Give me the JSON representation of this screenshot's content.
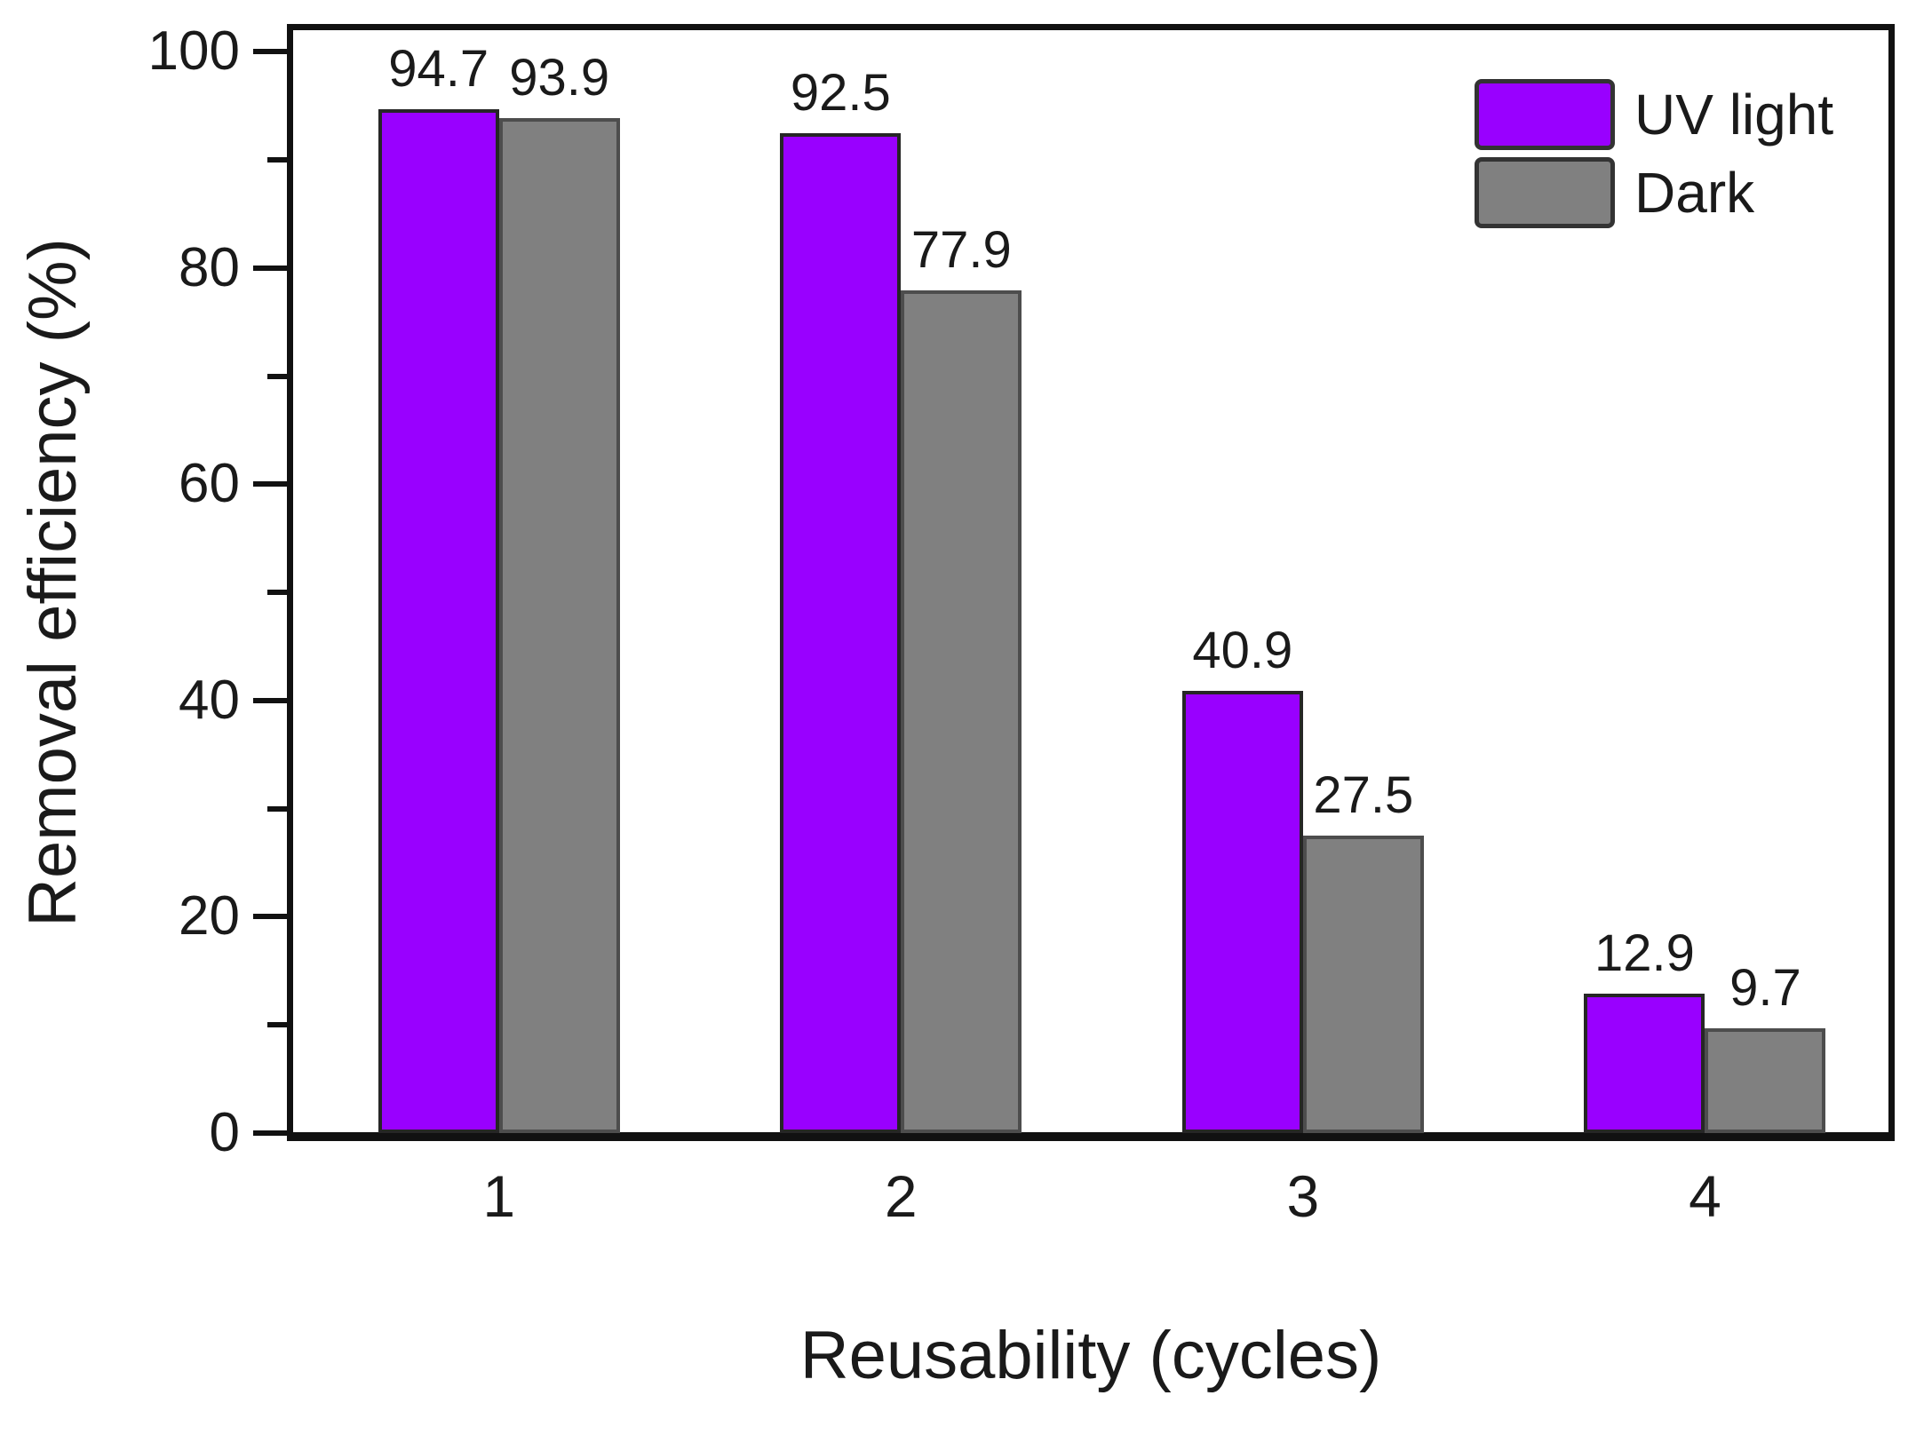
{
  "figure": {
    "background": "#ffffff",
    "text_color": "#1a1a1a",
    "frame_color": "#111111"
  },
  "chart_data": {
    "type": "bar",
    "title": "",
    "xlabel": "Reusability (cycles)",
    "ylabel": "Removal efficiency (%)",
    "categories": [
      "1",
      "2",
      "3",
      "4"
    ],
    "series": [
      {
        "name": "UV light",
        "color": "#9900FF",
        "edge": "#262626",
        "values": [
          94.7,
          92.5,
          40.9,
          12.9
        ]
      },
      {
        "name": "Dark",
        "color": "#808080",
        "edge": "#4d4d4d",
        "values": [
          93.9,
          77.9,
          27.5,
          9.7
        ]
      }
    ],
    "value_labels": [
      [
        "94.7",
        "93.9"
      ],
      [
        "92.5",
        "77.9"
      ],
      [
        "40.9",
        "27.5"
      ],
      [
        "12.9",
        "9.7"
      ]
    ],
    "ylim": [
      0,
      100
    ],
    "yticks_major": [
      0,
      20,
      40,
      60,
      80,
      100
    ],
    "yticks_minor": [
      10,
      30,
      50,
      70,
      90
    ],
    "ytick_labels": [
      "0",
      "20",
      "40",
      "60",
      "80",
      "100"
    ],
    "grid": false,
    "legend_position": "top-right-inside"
  }
}
